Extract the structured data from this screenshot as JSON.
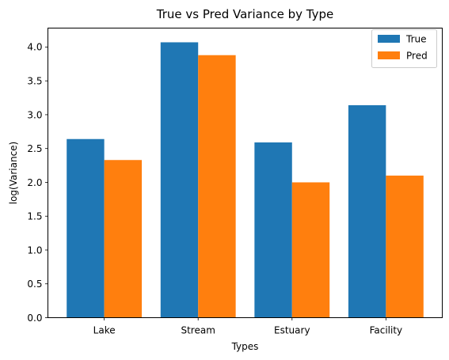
{
  "chart_data": {
    "type": "bar",
    "title": "True vs Pred Variance by Type",
    "xlabel": "Types",
    "ylabel": "log(Variance)",
    "categories": [
      "Lake",
      "Stream",
      "Estuary",
      "Facility"
    ],
    "series": [
      {
        "name": "True",
        "color": "#1f77b4",
        "values": [
          2.64,
          4.07,
          2.59,
          3.14
        ]
      },
      {
        "name": "Pred",
        "color": "#ff7f0e",
        "values": [
          2.33,
          3.88,
          2.0,
          2.1
        ]
      }
    ],
    "ylim": [
      0,
      4.28
    ],
    "yticks": [
      0.0,
      0.5,
      1.0,
      1.5,
      2.0,
      2.5,
      3.0,
      3.5,
      4.0
    ],
    "ytick_labels": [
      "0.0",
      "0.5",
      "1.0",
      "1.5",
      "2.0",
      "2.5",
      "3.0",
      "3.5",
      "4.0"
    ],
    "legend": {
      "position": "top-right",
      "entries": [
        "True",
        "Pred"
      ]
    },
    "grid": false
  }
}
